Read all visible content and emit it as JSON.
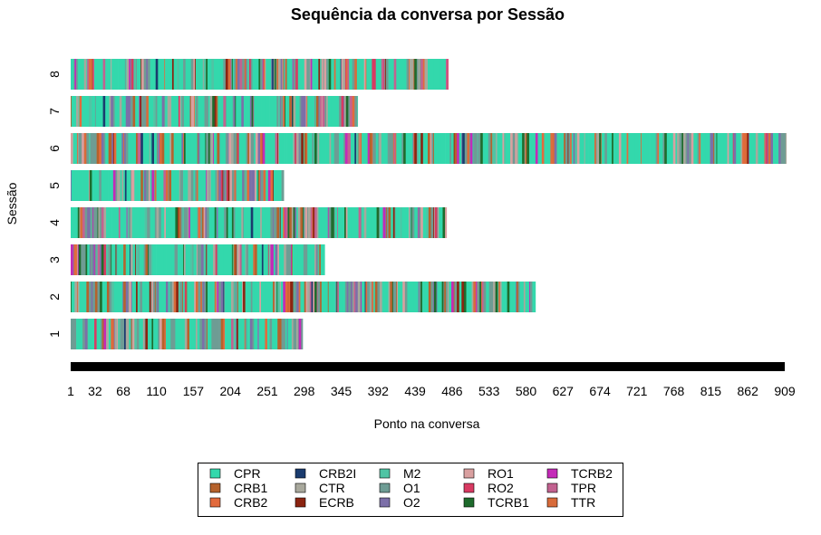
{
  "chart_data": {
    "type": "bar",
    "subtype": "sequence-index-plot",
    "title": "Sequência da conversa por Sessão",
    "xlabel": "Ponto na conversa",
    "ylabel": "Sessão",
    "x_ticks": [
      1,
      32,
      68,
      110,
      157,
      204,
      251,
      298,
      345,
      392,
      439,
      486,
      533,
      580,
      627,
      674,
      721,
      768,
      815,
      862,
      909
    ],
    "xlim": [
      1,
      909
    ],
    "categories": [
      "1",
      "2",
      "3",
      "4",
      "5",
      "6",
      "7",
      "8"
    ],
    "values": [
      296,
      592,
      324,
      479,
      272,
      911,
      366,
      481
    ],
    "states": [
      {
        "name": "CPR",
        "color": "#33D8AC"
      },
      {
        "name": "CRB1",
        "color": "#B5622C"
      },
      {
        "name": "CRB2",
        "color": "#E26A3C"
      },
      {
        "name": "CRB2I",
        "color": "#1A3B6E"
      },
      {
        "name": "CTR",
        "color": "#A8A89C"
      },
      {
        "name": "ECRB",
        "color": "#8B2410"
      },
      {
        "name": "M2",
        "color": "#4FC4A4"
      },
      {
        "name": "O1",
        "color": "#6E9C94"
      },
      {
        "name": "O2",
        "color": "#7C6FA8"
      },
      {
        "name": "RO1",
        "color": "#D9A0A0"
      },
      {
        "name": "RO2",
        "color": "#D83A62"
      },
      {
        "name": "TCRB1",
        "color": "#1E6B2C"
      },
      {
        "name": "TCRB2",
        "color": "#C42AB8"
      },
      {
        "name": "TPR",
        "color": "#C26290"
      },
      {
        "name": "TTR",
        "color": "#D86B3A"
      }
    ],
    "legend_position": "bottom",
    "grid": false
  }
}
